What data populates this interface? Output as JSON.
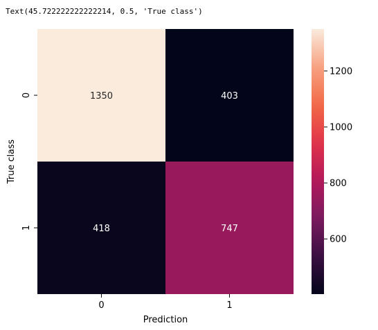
{
  "output_text": "Text(45.722222222222214, 0.5, 'True class')",
  "chart_data": {
    "type": "heatmap",
    "xlabel": "Prediction",
    "ylabel": "True class",
    "x_categories": [
      "0",
      "1"
    ],
    "y_categories": [
      "0",
      "1"
    ],
    "values": [
      [
        1350,
        403
      ],
      [
        418,
        747
      ]
    ],
    "annotations": [
      "1350",
      "403",
      "418",
      "747"
    ],
    "colormap": "rocket",
    "colorbar": {
      "range": [
        403,
        1350
      ],
      "ticks": [
        600,
        800,
        1000,
        1200
      ],
      "tick_labels": [
        "600",
        "800",
        "1000",
        "1200"
      ]
    },
    "annotation_colors": {
      "light_cell": "#262626",
      "dark_cell": "#ffffff"
    },
    "rocket_stops": [
      "#03051a",
      "#3b0f42",
      "#7a1b5e",
      "#b2195b",
      "#e1334a",
      "#f26a47",
      "#f7a282",
      "#faebdd"
    ]
  }
}
